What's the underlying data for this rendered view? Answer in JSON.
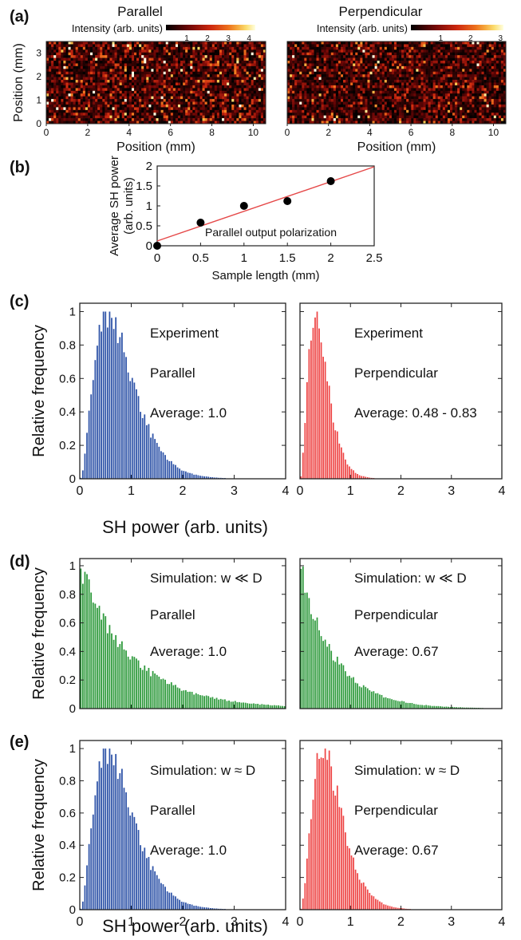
{
  "panels": {
    "a": {
      "label": "(a)"
    },
    "b": {
      "label": "(b)"
    },
    "c": {
      "label": "(c)"
    },
    "d": {
      "label": "(d)"
    },
    "e": {
      "label": "(e)"
    }
  },
  "colors": {
    "blue": "#2f54a8",
    "red": "#ee4444",
    "green": "#2e9a3c",
    "fit_line": "#e54848",
    "marker": "#000000",
    "heat_low": "#000000",
    "heat_high": "#ffffdd"
  },
  "chart_data": [
    {
      "id": "a-parallel",
      "type": "heatmap",
      "title": "Parallel",
      "colorbar_label": "Intensity (arb. units)",
      "colorbar_ticks": [
        "1",
        "2",
        "3",
        "4"
      ],
      "colorbar_range": [
        0,
        4.3
      ],
      "xlabel": "Position (mm)",
      "ylabel": "Position (mm)",
      "xticks": [
        "0",
        "2",
        "4",
        "6",
        "8",
        "10"
      ],
      "yticks": [
        "0",
        "1",
        "2",
        "3"
      ],
      "xlim": [
        0,
        10.6
      ],
      "ylim": [
        0,
        3.5
      ],
      "grid": {
        "cols": 90,
        "rows": 30
      },
      "seed": 7,
      "mean_intensity": 1.0
    },
    {
      "id": "a-perpendicular",
      "type": "heatmap",
      "title": "Perpendicular",
      "colorbar_label": "Intensity (arb. units)",
      "colorbar_ticks": [
        "1",
        "2",
        "3"
      ],
      "colorbar_range": [
        0,
        3.1
      ],
      "xlabel": "Position (mm)",
      "ylabel": "",
      "xticks": [
        "0",
        "2",
        "4",
        "6",
        "8",
        "10"
      ],
      "yticks": [],
      "xlim": [
        0,
        10.6
      ],
      "ylim": [
        0,
        3.5
      ],
      "grid": {
        "cols": 90,
        "rows": 30
      },
      "seed": 13,
      "mean_intensity": 0.6
    },
    {
      "id": "b",
      "type": "scatter",
      "annotation": "Parallel output polarization",
      "xlabel": "Sample length (mm)",
      "ylabel_lines": [
        "Average SH power",
        "(arb. units)"
      ],
      "xlim": [
        0,
        2.5
      ],
      "ylim": [
        0,
        2
      ],
      "xticks": [
        "0",
        "0.5",
        "1",
        "1.5",
        "2",
        "2.5"
      ],
      "yticks": [
        "0",
        "0.5",
        "1",
        "1.5",
        "2"
      ],
      "points": [
        [
          0,
          0
        ],
        [
          0.5,
          0.58
        ],
        [
          1,
          1.0
        ],
        [
          1.5,
          1.12
        ],
        [
          2,
          1.62
        ]
      ],
      "fit": {
        "x": [
          0,
          2.5
        ],
        "y": [
          0.12,
          1.98
        ]
      }
    },
    {
      "id": "c-left",
      "type": "bar",
      "color_key": "blue",
      "annotations": [
        "Experiment",
        "Parallel",
        "Average: 1.0"
      ],
      "ylabel": "Relative frequency",
      "xticks": [
        "0",
        "1",
        "2",
        "3",
        "4"
      ],
      "yticks": [
        "0",
        "0.2",
        "0.4",
        "0.6",
        "0.8",
        "1"
      ],
      "xlim": [
        0,
        4
      ],
      "ylim": [
        0,
        1.05
      ],
      "bins": 100,
      "dist": {
        "shape": 3.2,
        "mode": 0.55
      }
    },
    {
      "id": "c-right",
      "type": "bar",
      "color_key": "red",
      "annotations": [
        "Experiment",
        "Perpendicular",
        "Average: 0.48 - 0.83"
      ],
      "ylabel": "",
      "xticks": [
        "0",
        "1",
        "2",
        "3",
        "4"
      ],
      "yticks": [],
      "xlim": [
        0,
        4
      ],
      "ylim": [
        0,
        1.05
      ],
      "bins": 100,
      "dist": {
        "shape": 3.4,
        "mode": 0.3
      }
    },
    {
      "id": "d-left",
      "type": "bar",
      "color_key": "green",
      "annotations": [
        "Simulation: w ≪ D",
        "Parallel",
        "Average: 1.0"
      ],
      "ylabel": "Relative frequency",
      "xticks": [],
      "yticks": [
        "0",
        "0.2",
        "0.4",
        "0.6",
        "0.8",
        "1"
      ],
      "xlim": [
        0,
        4
      ],
      "ylim": [
        0,
        1.05
      ],
      "bins": 100,
      "dist": {
        "shape": 1,
        "scale": 1.0
      }
    },
    {
      "id": "d-right",
      "type": "bar",
      "color_key": "green",
      "annotations": [
        "Simulation: w ≪ D",
        "Perpendicular",
        "Average: 0.67"
      ],
      "ylabel": "",
      "xticks": [],
      "yticks": [],
      "xlim": [
        0,
        4
      ],
      "ylim": [
        0,
        1.05
      ],
      "bins": 100,
      "dist": {
        "shape": 1,
        "scale": 0.67
      }
    },
    {
      "id": "e-left",
      "type": "bar",
      "color_key": "blue",
      "annotations": [
        "Simulation: w ≈ D",
        "Parallel",
        "Average: 1.0"
      ],
      "ylabel": "Relative frequency",
      "xticks": [
        "0",
        "1",
        "2",
        "3",
        "4"
      ],
      "yticks": [
        "0",
        "0.2",
        "0.4",
        "0.6",
        "0.8",
        "1"
      ],
      "xlim": [
        0,
        4
      ],
      "ylim": [
        0,
        1.05
      ],
      "bins": 100,
      "dist": {
        "shape": 3.2,
        "mode": 0.55
      }
    },
    {
      "id": "e-right",
      "type": "bar",
      "color_key": "red",
      "annotations": [
        "Simulation: w ≈ D",
        "Perpendicular",
        "Average: 0.67"
      ],
      "ylabel": "",
      "xticks": [
        "0",
        "1",
        "2",
        "3",
        "4"
      ],
      "yticks": [],
      "xlim": [
        0,
        4
      ],
      "ylim": [
        0,
        1.05
      ],
      "bins": 100,
      "dist": {
        "shape": 3.4,
        "mode": 0.45
      }
    }
  ],
  "shared_xlabels": {
    "c": "SH power (arb. units)",
    "e": "SH power (arb. units)"
  }
}
